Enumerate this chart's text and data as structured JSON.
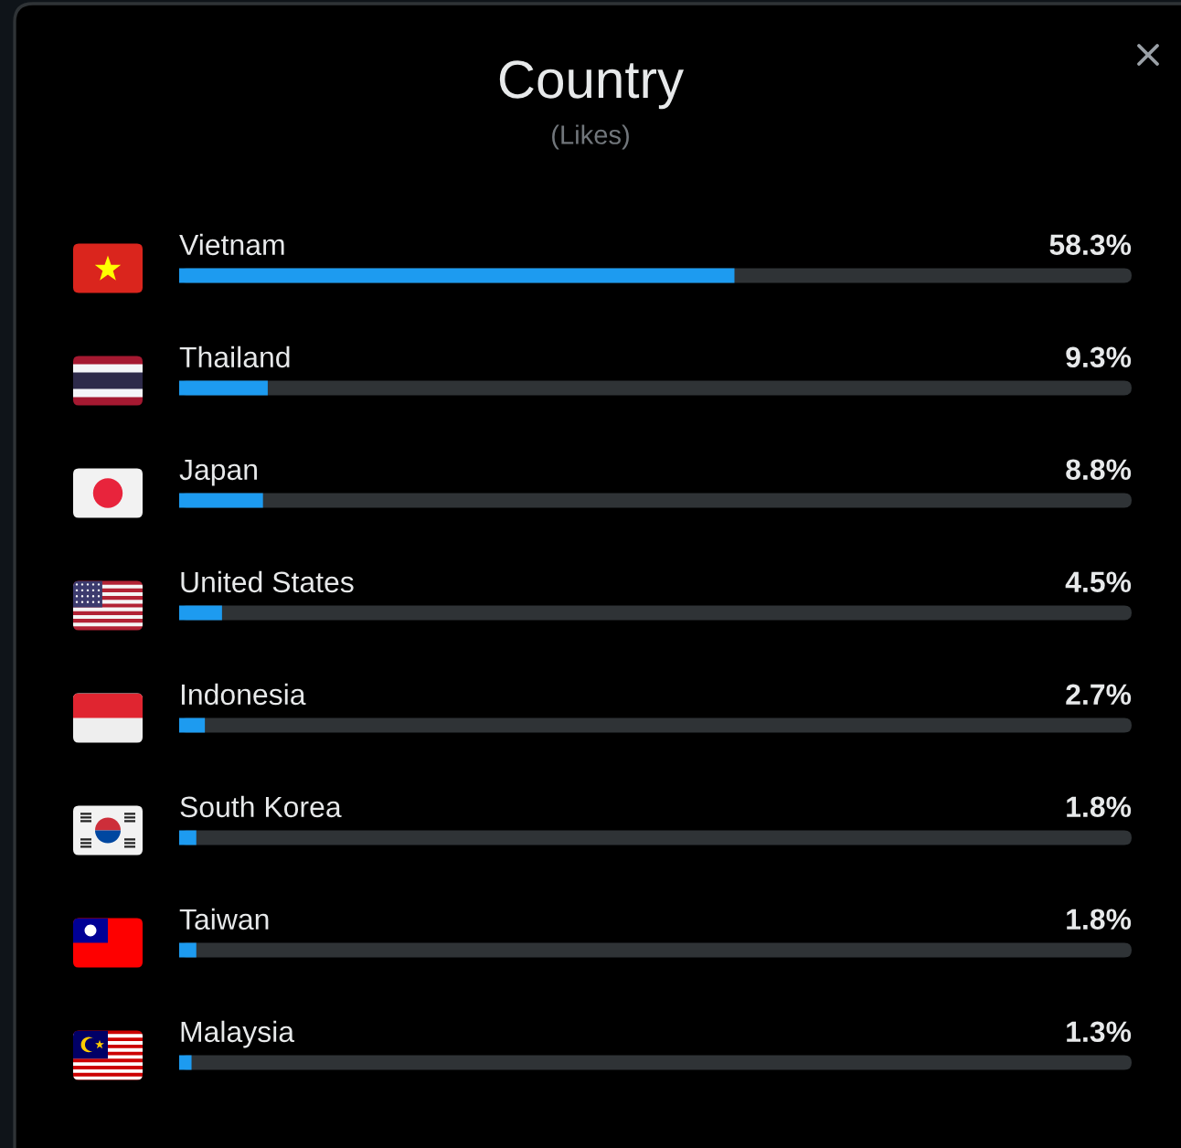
{
  "chart_data": {
    "type": "bar",
    "orientation": "horizontal",
    "title": "Country",
    "subtitle": "(Likes)",
    "categories": [
      "Vietnam",
      "Thailand",
      "Japan",
      "United States",
      "Indonesia",
      "South Korea",
      "Taiwan",
      "Malaysia"
    ],
    "values": [
      58.3,
      9.3,
      8.8,
      4.5,
      2.7,
      1.8,
      1.8,
      1.3
    ],
    "value_labels": [
      "58.3%",
      "9.3%",
      "8.8%",
      "4.5%",
      "2.7%",
      "1.8%",
      "1.8%",
      "1.3%"
    ],
    "color": "#1d9bf0",
    "xlim": [
      0,
      100
    ],
    "tick_labels": "y"
  }
}
